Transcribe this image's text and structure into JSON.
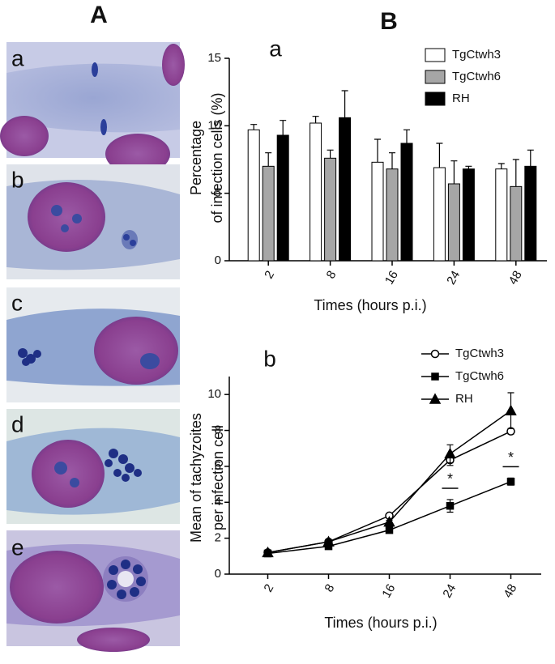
{
  "panel_labels": {
    "left": "A",
    "right": "B"
  },
  "micrographs": [
    "a",
    "b",
    "c",
    "d",
    "e"
  ],
  "chart_data": [
    {
      "type": "bar",
      "panel_label": "a",
      "xlabel": "Times (hours p.i.)",
      "ylabel": [
        "Percentage",
        "of infection cells (%)"
      ],
      "categories": [
        "2",
        "8",
        "16",
        "24",
        "48"
      ],
      "series": [
        {
          "name": "TgCtwh3",
          "color": "#ffffff",
          "values": [
            9.7,
            10.2,
            7.3,
            6.9,
            6.8
          ],
          "errors": [
            0.4,
            0.5,
            1.7,
            1.8,
            0.4
          ]
        },
        {
          "name": "TgCtwh6",
          "color": "#a6a6a6",
          "values": [
            7.0,
            7.6,
            6.8,
            5.7,
            5.5
          ],
          "errors": [
            1.0,
            0.6,
            1.2,
            1.7,
            2.0
          ]
        },
        {
          "name": "RH",
          "color": "#000000",
          "values": [
            9.3,
            10.6,
            8.7,
            6.8,
            7.0
          ],
          "errors": [
            1.1,
            2.0,
            1.0,
            0.2,
            1.2
          ]
        }
      ],
      "ylim": [
        0,
        15
      ],
      "yticks": [
        0,
        5,
        10,
        15
      ],
      "legend": "upper right"
    },
    {
      "type": "line",
      "panel_label": "b",
      "xlabel": "Times (hours p.i.)",
      "ylabel": [
        "Mean of tachyzoites",
        "per infection cell"
      ],
      "categories": [
        "2",
        "8",
        "16",
        "24",
        "48"
      ],
      "series": [
        {
          "name": "TgCtwh3",
          "color": "#000000",
          "marker": "open-circle",
          "values": [
            1.2,
            1.8,
            3.25,
            6.35,
            7.95
          ],
          "errors": [
            0.1,
            0.1,
            0.1,
            0.3,
            0.15
          ]
        },
        {
          "name": "TgCtwh6",
          "color": "#000000",
          "marker": "square",
          "values": [
            1.15,
            1.55,
            2.45,
            3.8,
            5.15
          ],
          "errors": [
            0.1,
            0.1,
            0.1,
            0.35,
            0.2
          ]
        },
        {
          "name": "RH",
          "color": "#000000",
          "marker": "triangle",
          "values": [
            1.2,
            1.8,
            2.9,
            6.7,
            9.1
          ],
          "errors": [
            0.1,
            0.1,
            0.1,
            0.5,
            1.0
          ]
        }
      ],
      "annotations": [
        {
          "text": "*",
          "category": "24",
          "series": "TgCtwh6"
        },
        {
          "text": "*",
          "category": "48",
          "series": "TgCtwh6"
        }
      ],
      "ylim": [
        0,
        11
      ],
      "yticks": [
        0,
        2,
        4,
        6,
        8,
        10
      ],
      "legend": "upper left"
    }
  ]
}
